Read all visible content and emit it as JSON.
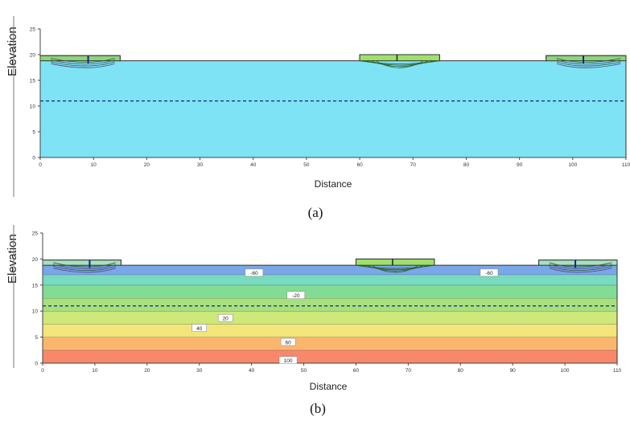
{
  "figures": [
    {
      "caption": "(a)",
      "chart_data": {
        "type": "area",
        "xlabel": "Distance",
        "ylabel": "Elevation",
        "xlim": [
          0,
          110
        ],
        "ylim": [
          0,
          25
        ],
        "x_ticks": [
          0,
          10,
          20,
          30,
          40,
          50,
          60,
          70,
          80,
          90,
          100,
          110
        ],
        "y_ticks": [
          0,
          5,
          10,
          15,
          20,
          25
        ],
        "water_table": 11,
        "fill_color": "#7ee3f5",
        "structure_color": "#9ee06a"
      }
    },
    {
      "caption": "(b)",
      "chart_data": {
        "type": "heatmap",
        "xlabel": "Distance",
        "ylabel": "Elevation",
        "xlim": [
          0,
          110
        ],
        "ylim": [
          0,
          25
        ],
        "x_ticks": [
          0,
          10,
          20,
          30,
          40,
          50,
          60,
          70,
          80,
          90,
          100,
          110
        ],
        "y_ticks": [
          0,
          5,
          10,
          15,
          20,
          25
        ],
        "water_table": 11,
        "contour_labels": [
          {
            "text": "-60",
            "x": 40.5,
            "y": 17.3
          },
          {
            "text": "-60",
            "x": 85.5,
            "y": 17.3
          },
          {
            "text": "-20",
            "x": 48.5,
            "y": 13.0
          },
          {
            "text": "20",
            "x": 35.0,
            "y": 8.6
          },
          {
            "text": "40",
            "x": 30.0,
            "y": 6.7
          },
          {
            "text": "60",
            "x": 47.0,
            "y": 4.0
          },
          {
            "text": "100",
            "x": 47.0,
            "y": 0.5
          }
        ],
        "bands": [
          {
            "from": 0,
            "to": 2.5,
            "color": "#f7896a"
          },
          {
            "from": 2.5,
            "to": 5,
            "color": "#fbb66e"
          },
          {
            "from": 5,
            "to": 7.5,
            "color": "#f3e57a"
          },
          {
            "from": 7.5,
            "to": 10,
            "color": "#cfe87a"
          },
          {
            "from": 10,
            "to": 12.5,
            "color": "#a6e07f"
          },
          {
            "from": 12.5,
            "to": 15,
            "color": "#82dc94"
          },
          {
            "from": 15,
            "to": 17,
            "color": "#78dbbf"
          },
          {
            "from": 17,
            "to": 19,
            "color": "#7aa6ea"
          }
        ],
        "structure_color": "#9ee06a"
      }
    }
  ]
}
